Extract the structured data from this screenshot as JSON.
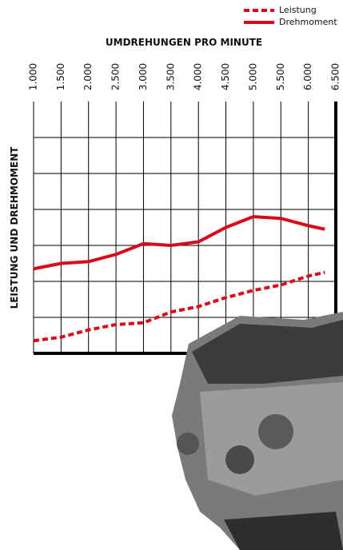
{
  "chart_data": {
    "type": "line",
    "title": "UMDREHUNGEN PRO MINUTE",
    "y_label": "LEISTUNG UND DREHMOMENT",
    "x": [
      1000,
      1500,
      2000,
      2500,
      3000,
      3500,
      4000,
      4500,
      5000,
      5500,
      6000,
      6300
    ],
    "xlim": [
      1000,
      6500
    ],
    "xticks": [
      {
        "value": 1000,
        "label": "1.000"
      },
      {
        "value": 1500,
        "label": "1.500"
      },
      {
        "value": 2000,
        "label": "2.000"
      },
      {
        "value": 2500,
        "label": "2.500"
      },
      {
        "value": 3000,
        "label": "3.000"
      },
      {
        "value": 3500,
        "label": "3.500"
      },
      {
        "value": 4000,
        "label": "4.000"
      },
      {
        "value": 4500,
        "label": "4.500"
      },
      {
        "value": 5000,
        "label": "5.000"
      },
      {
        "value": 5500,
        "label": "5.500"
      },
      {
        "value": 6000,
        "label": "6.000"
      },
      {
        "value": 6500,
        "label": "6.500"
      }
    ],
    "ylim": [
      0,
      7
    ],
    "yticks": [
      1,
      2,
      3,
      4,
      5,
      6
    ],
    "grid": true,
    "legend": "top-right",
    "series": [
      {
        "name": "Leistung",
        "color": "#d7091a",
        "dash": true,
        "values": [
          0.35,
          0.45,
          0.65,
          0.8,
          0.85,
          1.15,
          1.3,
          1.55,
          1.75,
          1.9,
          2.15,
          2.25
        ]
      },
      {
        "name": "Drehmoment",
        "color": "#d7091a",
        "dash": false,
        "values": [
          2.35,
          2.5,
          2.55,
          2.75,
          3.05,
          3.0,
          3.1,
          3.5,
          3.8,
          3.75,
          3.55,
          3.45
        ]
      }
    ]
  }
}
